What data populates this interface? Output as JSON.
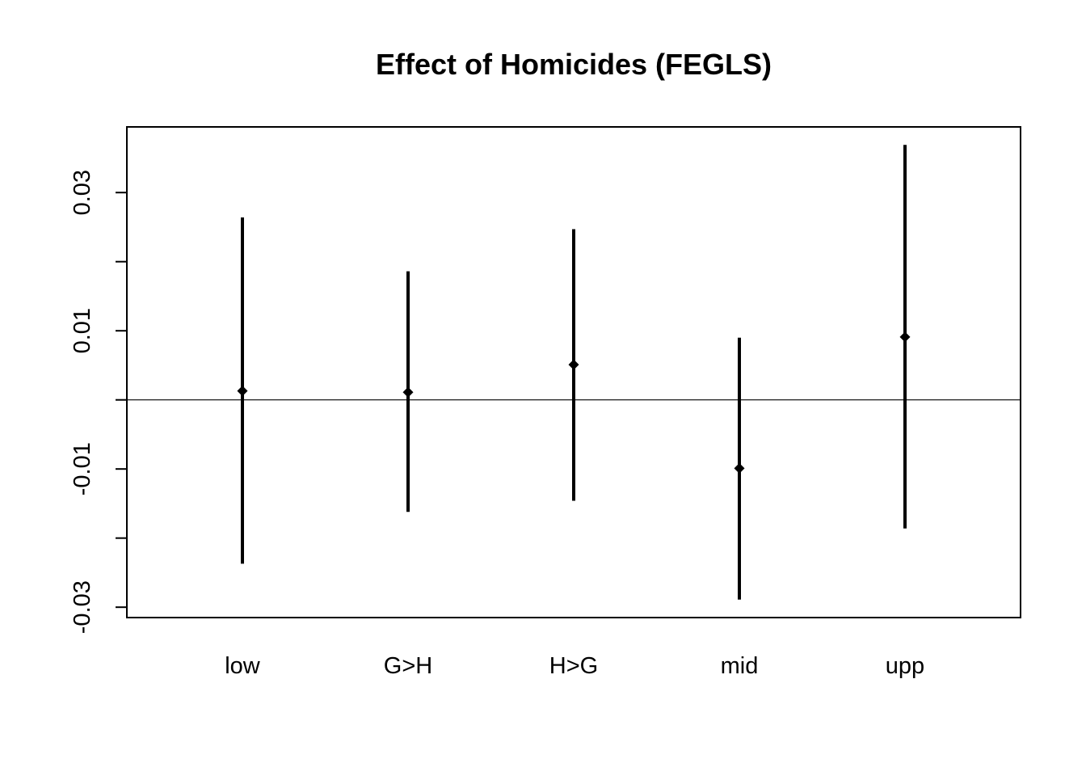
{
  "chart_data": {
    "type": "errorbar",
    "title": "Effect of Homicides (FEGLS)",
    "xlabel": "",
    "ylabel": "",
    "categories": [
      "low",
      "G>H",
      "H>G",
      "mid",
      "upp"
    ],
    "estimates": [
      0.0013,
      0.0011,
      0.0051,
      -0.0099,
      0.0091
    ],
    "lower": [
      -0.0237,
      -0.0162,
      -0.0146,
      -0.0289,
      -0.0186
    ],
    "upper": [
      0.0264,
      0.0186,
      0.0247,
      0.009,
      0.0369
    ],
    "ylim": [
      -0.0315,
      0.0395
    ],
    "yticks": [
      -0.03,
      -0.02,
      -0.01,
      0.0,
      0.01,
      0.02,
      0.03
    ],
    "ytick_labels": [
      "-0.03",
      "",
      "-0.01",
      "",
      "0.01",
      "",
      "0.03"
    ],
    "reference_line": 0,
    "grid": false,
    "colors": {
      "marks": "#000000",
      "frame": "#000000"
    }
  }
}
